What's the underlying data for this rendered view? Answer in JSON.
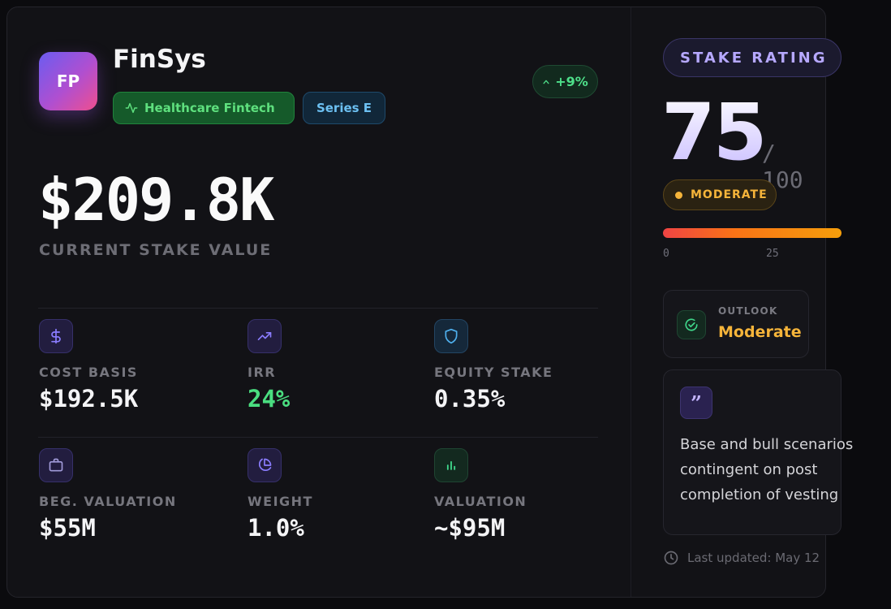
{
  "header": {
    "logo_initials": "FP",
    "company_name": "FinSys",
    "sector_tag": "Healthcare Fintech",
    "series_tag": "Series E",
    "change": "+9%"
  },
  "stake": {
    "value": "$209.8K",
    "label": "CURRENT STAKE VALUE"
  },
  "metrics": [
    {
      "label": "COST BASIS",
      "value": "$192.5K",
      "icon": "dollar-icon"
    },
    {
      "label": "IRR",
      "value": "24%",
      "icon": "trending-up-icon",
      "value_color": "#4ade80"
    },
    {
      "label": "EQUITY STAKE",
      "value": "0.35%",
      "icon": "shield-icon"
    },
    {
      "label": "BEG. VALUATION",
      "value": "$55M",
      "icon": "briefcase-icon"
    },
    {
      "label": "WEIGHT",
      "value": "1.0%",
      "icon": "pie-chart-icon"
    },
    {
      "label": "VALUATION",
      "value": "~$95M",
      "icon": "bar-chart-icon"
    }
  ],
  "rating": {
    "title": "STAKE RATING",
    "score": "75",
    "max": "/ 100",
    "level": "MODERATE",
    "gauge_ticks": [
      "0",
      "25"
    ]
  },
  "outlook": {
    "label": "OUTLOOK",
    "value": "Moderate"
  },
  "note": {
    "lines": [
      "Base and bull scenarios",
      "contingent on post",
      "completion of vesting"
    ]
  },
  "footer": {
    "updated": "Last updated: May 12"
  },
  "colors": {
    "accent_purple": "#b6a8ff",
    "positive_green": "#4ade80",
    "warning_amber": "#f5b43a"
  }
}
